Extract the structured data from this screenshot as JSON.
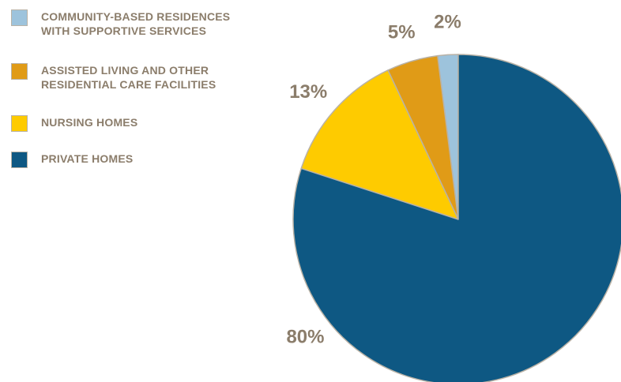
{
  "chart_data": {
    "type": "pie",
    "categories": [
      "COMMUNITY-BASED RESIDENCES WITH SUPPORTIVE SERVICES",
      "ASSISTED LIVING AND OTHER RESIDENTIAL CARE FACILITIES",
      "NURSING HOMES",
      "PRIVATE HOMES"
    ],
    "values": [
      2,
      5,
      13,
      80
    ],
    "value_labels": [
      "2%",
      "5%",
      "13%",
      "80%"
    ],
    "colors": [
      "#9dc3dc",
      "#e09b17",
      "#fecb00",
      "#0e5883"
    ],
    "legend_position": "top-left",
    "slice_order": "clockwise from 12 o'clock: private homes, then counter-clockwise nursing homes, assisted living, community-based"
  },
  "legend": [
    {
      "line1": "COMMUNITY-BASED RESIDENCES",
      "line2": "WITH SUPPORTIVE SERVICES"
    },
    {
      "line1": "ASSISTED LIVING AND OTHER",
      "line2": "RESIDENTIAL CARE FACILITIES"
    },
    {
      "line1": "NURSING HOMES",
      "line2": ""
    },
    {
      "line1": "PRIVATE HOMES",
      "line2": ""
    }
  ]
}
